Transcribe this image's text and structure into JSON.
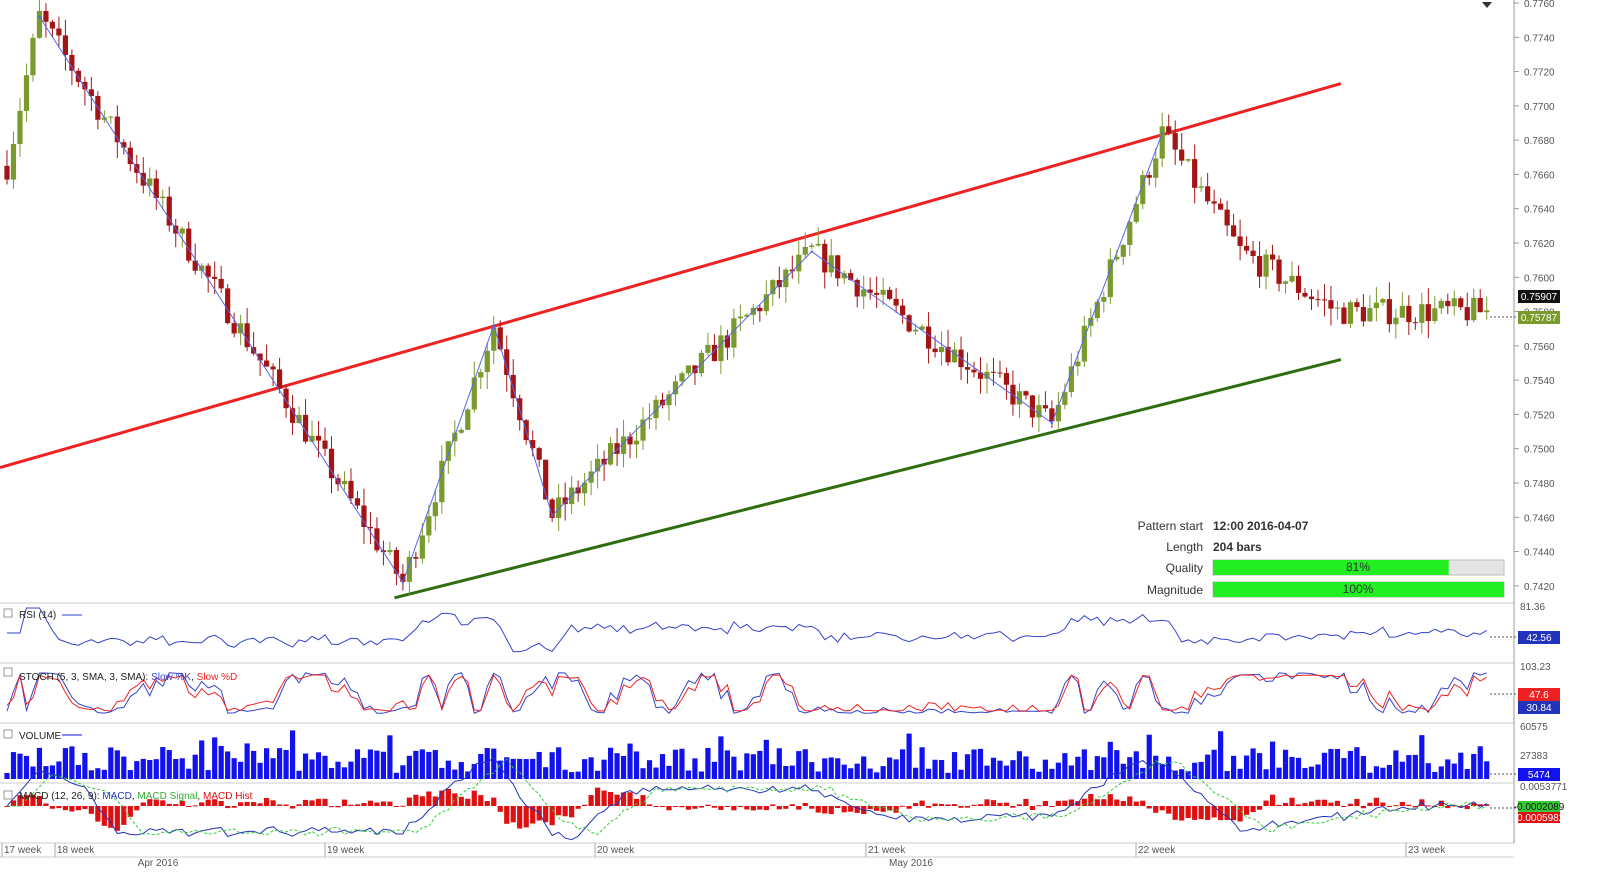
{
  "chart_data": {
    "type": "candlestick",
    "instrument_note": "",
    "price_axis": {
      "min": 0.741,
      "max": 0.776,
      "ticks": [
        "0.7760",
        "0.7740",
        "0.7720",
        "0.7700",
        "0.7680",
        "0.7660",
        "0.7640",
        "0.7620",
        "0.7600",
        "0.7580",
        "0.7560",
        "0.7540",
        "0.7520",
        "0.7500",
        "0.7480",
        "0.7460",
        "0.7440",
        "0.7420"
      ],
      "last_price": "0.75907",
      "current_price": "0.75787"
    },
    "time_axis": {
      "week_labels": [
        "17 week",
        "18 week",
        "19 week",
        "20 week",
        "21 week",
        "22 week",
        "23 week"
      ],
      "month_labels": [
        "Apr 2016",
        "May 2016"
      ]
    },
    "pattern": {
      "resistance_line": {
        "color": "#ee2222",
        "from": {
          "bar": 0,
          "price": 0.7489
        },
        "to": {
          "bar": 204,
          "price": 0.7713
        }
      },
      "support_line": {
        "color": "#2e6e10",
        "from": {
          "bar": 52,
          "price": 0.7413
        },
        "to": {
          "bar": 204,
          "price": 0.7552
        }
      },
      "zigzag_points": [
        {
          "bar": 5,
          "price": 0.7752
        },
        {
          "bar": 61,
          "price": 0.7422
        },
        {
          "bar": 75,
          "price": 0.7572
        },
        {
          "bar": 84,
          "price": 0.7461
        },
        {
          "bar": 124,
          "price": 0.7615
        },
        {
          "bar": 161,
          "price": 0.7515
        },
        {
          "bar": 178,
          "price": 0.7684
        }
      ]
    },
    "info_panel": {
      "pattern_start_label": "Pattern start",
      "pattern_start_value": "12:00 2016-04-07",
      "length_label": "Length",
      "length_value": "204 bars",
      "quality_label": "Quality",
      "quality_value": "81%",
      "quality_fraction": 0.81,
      "magnitude_label": "Magnitude",
      "magnitude_value": "100%",
      "magnitude_fraction": 1.0
    },
    "indicators": {
      "rsi": {
        "label": "RSI (14)",
        "top_tick": "81.36",
        "last": "42.56"
      },
      "stoch": {
        "label_prefix": "STOCH (5, 3, SMA, 3, SMA):",
        "k_name": "Slow %K",
        "d_name": "Slow %D",
        "top_tick": "103.23",
        "last_d": "47.6",
        "last_k": "30.84"
      },
      "volume": {
        "label": "VOLUME",
        "ticks": [
          "60575",
          "27383"
        ],
        "last": "5474"
      },
      "macd": {
        "label_prefix": "MACD (12, 26, 9):",
        "macd_name": "MACD",
        "signal_name": "MACD Signal",
        "hist_name": "MACD Hist",
        "top_tick": "0.0053771",
        "last_macd": "-0.0002089",
        "last_hist": "-0.0005982"
      }
    },
    "colors": {
      "bull": "#7a9a2e",
      "bear": "#a31515",
      "zigzag": "#5566ee",
      "rsi": "#3344cc",
      "stoch_k": "#3344cc",
      "stoch_d": "#ee2222",
      "volume": "#1212ee",
      "macd": "#2233bb",
      "signal": "#33cc33",
      "hist": "#dd1111",
      "quality_fill": "#22ee22",
      "badge_dark": "#111111",
      "badge_green": "#7a9a2e"
    }
  }
}
